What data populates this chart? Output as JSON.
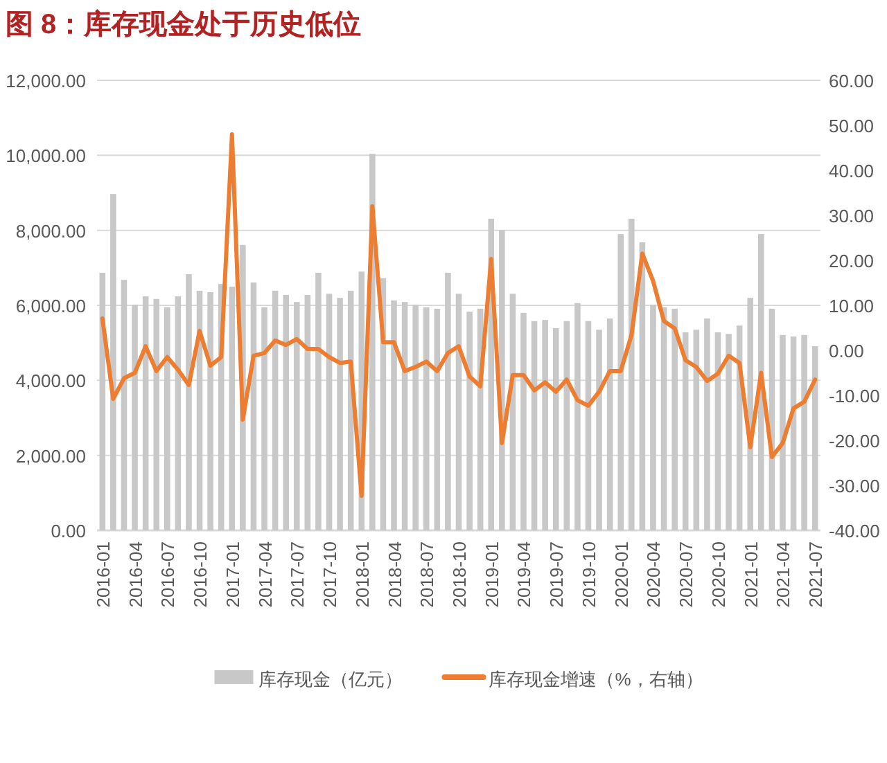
{
  "chart_data": {
    "type": "bar",
    "title": "图 8：库存现金处于历史低位",
    "categories": [
      "2016-01",
      null,
      null,
      "2016-04",
      null,
      null,
      "2016-07",
      null,
      null,
      "2016-10",
      null,
      null,
      "2017-01",
      null,
      null,
      "2017-04",
      null,
      null,
      "2017-07",
      null,
      null,
      "2017-10",
      null,
      null,
      "2018-01",
      null,
      null,
      "2018-04",
      null,
      null,
      "2018-07",
      null,
      null,
      "2018-10",
      null,
      null,
      "2019-01",
      null,
      null,
      "2019-04",
      null,
      null,
      "2019-07",
      null,
      null,
      "2019-10",
      null,
      null,
      "2020-01",
      null,
      null,
      "2020-04",
      null,
      null,
      "2020-07",
      null,
      null,
      "2020-10",
      null,
      null,
      "2021-01",
      null,
      null,
      "2021-04",
      null,
      null,
      "2021-07"
    ],
    "series": [
      {
        "name": "库存现金（亿元）",
        "color": "#c8c8c8",
        "values": [
          6870,
          8970,
          6680,
          6020,
          6240,
          6170,
          5950,
          6240,
          6830,
          6390,
          6350,
          6570,
          6500,
          7610,
          6610,
          5950,
          6390,
          6280,
          6090,
          6280,
          6870,
          6310,
          6200,
          6390,
          6900,
          10040,
          6720,
          6130,
          6090,
          6020,
          5950,
          5910,
          6870,
          6310,
          5830,
          5910,
          8310,
          8010,
          6310,
          5800,
          5580,
          5610,
          5390,
          5580,
          6060,
          5580,
          5350,
          5650,
          7900,
          8310,
          7680,
          6020,
          5950,
          5910,
          5280,
          5350,
          5650,
          5280,
          5240,
          5460,
          6200,
          7900,
          5910,
          5210,
          5170,
          5210,
          4910
        ]
      },
      {
        "name": "库存现金增速（%，右轴）",
        "type": "line",
        "axis": "y2",
        "color": "#ed7d31",
        "values": [
          7.1,
          -10.8,
          -6.2,
          -5,
          0.9,
          -4.6,
          -1.5,
          -4.3,
          -7.7,
          4.3,
          -3.4,
          -1.5,
          48,
          -15.4,
          -1.2,
          -0.6,
          2.2,
          1.2,
          2.5,
          0.3,
          0.3,
          -1.5,
          -2.8,
          -2.5,
          -32.3,
          32,
          1.8,
          1.8,
          -4.6,
          -3.7,
          -2.5,
          -4.6,
          -0.6,
          0.9,
          -5.8,
          -8,
          20.3,
          -20.6,
          -5.5,
          -5.5,
          -8.9,
          -7.1,
          -9.2,
          -6.5,
          -11.1,
          -12.3,
          -9.2,
          -4.6,
          -4.6,
          3.4,
          21.5,
          15.4,
          6.5,
          4.9,
          -2.2,
          -3.7,
          -6.8,
          -5.2,
          -1.2,
          -2.8,
          -21.5,
          -5,
          -23.7,
          -20.6,
          -12.9,
          -11.4,
          -6.5
        ]
      }
    ],
    "ylim": [
      0,
      12000
    ],
    "yticks": [
      {
        "value": 0,
        "label": "0.00"
      },
      {
        "value": 2000,
        "label": "2,000.00"
      },
      {
        "value": 4000,
        "label": "4,000.00"
      },
      {
        "value": 6000,
        "label": "6,000.00"
      },
      {
        "value": 8000,
        "label": "8,000.00"
      },
      {
        "value": 10000,
        "label": "10,000.00"
      },
      {
        "value": 12000,
        "label": "12,000.00"
      }
    ],
    "y2lim": [
      -40,
      60
    ],
    "y2ticks": [
      {
        "value": -40,
        "label": "-40.00"
      },
      {
        "value": -30,
        "label": "-30.00"
      },
      {
        "value": -20,
        "label": "-20.00"
      },
      {
        "value": -10,
        "label": "-10.00"
      },
      {
        "value": 0,
        "label": "0.00"
      },
      {
        "value": 10,
        "label": "10.00"
      },
      {
        "value": 20,
        "label": "20.00"
      },
      {
        "value": 30,
        "label": "30.00"
      },
      {
        "value": 40,
        "label": "40.00"
      },
      {
        "value": 50,
        "label": "50.00"
      },
      {
        "value": 60,
        "label": "60.00"
      }
    ],
    "grid": "y",
    "legend": "bottom",
    "marker": "none",
    "line_style": "solid"
  }
}
